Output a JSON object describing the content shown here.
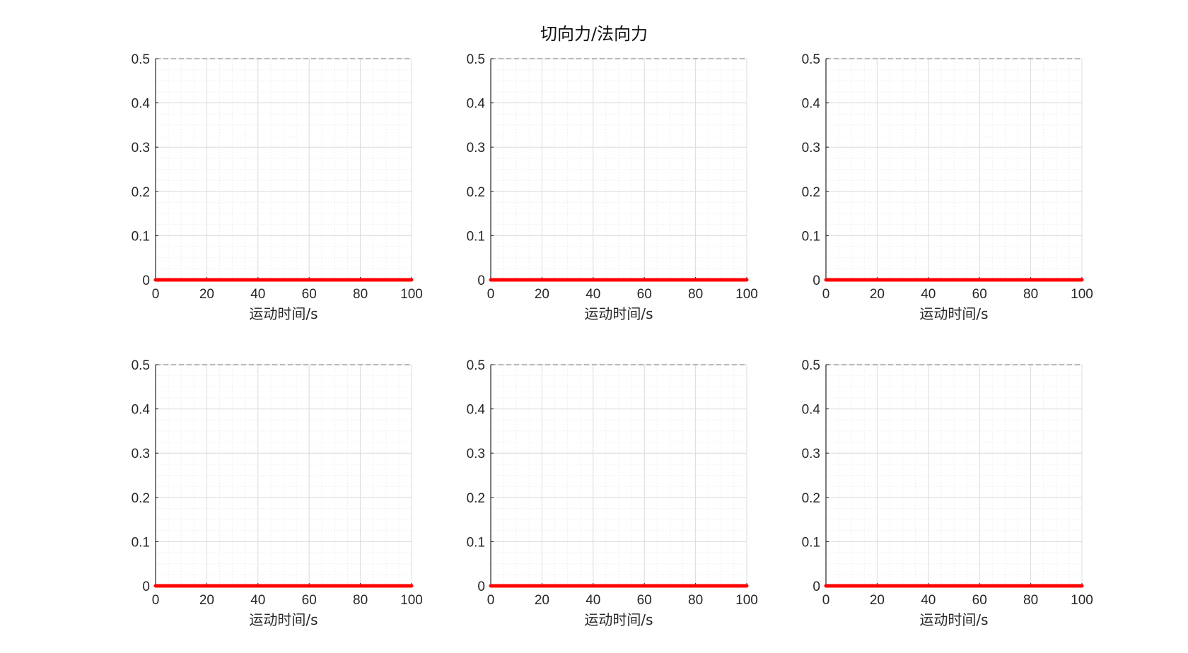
{
  "figure": {
    "title": "切向力/法向力"
  },
  "colors": {
    "series": "#ff0000",
    "axis": "#262626",
    "major_grid": "#dcdcdc",
    "minor_grid": "#ececec",
    "top_box": "#8c8c8c"
  },
  "chart_data": [
    {
      "type": "line",
      "title": "",
      "xlabel": "运动时间/s",
      "ylabel": "",
      "xlim": [
        0,
        100
      ],
      "ylim": [
        0,
        0.5
      ],
      "xticks": [
        "0",
        "20",
        "40",
        "60",
        "80",
        "100"
      ],
      "yticks": [
        "0",
        "0.1",
        "0.2",
        "0.3",
        "0.4",
        "0.5"
      ],
      "grid": "major and minor",
      "series": [
        {
          "x": [
            0,
            100
          ],
          "y": [
            0,
            0
          ]
        }
      ]
    },
    {
      "type": "line",
      "title": "",
      "xlabel": "运动时间/s",
      "ylabel": "",
      "xlim": [
        0,
        100
      ],
      "ylim": [
        0,
        0.5
      ],
      "xticks": [
        "0",
        "20",
        "40",
        "60",
        "80",
        "100"
      ],
      "yticks": [
        "0",
        "0.1",
        "0.2",
        "0.3",
        "0.4",
        "0.5"
      ],
      "grid": "major and minor",
      "series": [
        {
          "x": [
            0,
            100
          ],
          "y": [
            0,
            0
          ]
        }
      ]
    },
    {
      "type": "line",
      "title": "",
      "xlabel": "运动时间/s",
      "ylabel": "",
      "xlim": [
        0,
        100
      ],
      "ylim": [
        0,
        0.5
      ],
      "xticks": [
        "0",
        "20",
        "40",
        "60",
        "80",
        "100"
      ],
      "yticks": [
        "0",
        "0.1",
        "0.2",
        "0.3",
        "0.4",
        "0.5"
      ],
      "grid": "major and minor",
      "series": [
        {
          "x": [
            0,
            100
          ],
          "y": [
            0,
            0
          ]
        }
      ]
    },
    {
      "type": "line",
      "title": "",
      "xlabel": "运动时间/s",
      "ylabel": "",
      "xlim": [
        0,
        100
      ],
      "ylim": [
        0,
        0.5
      ],
      "xticks": [
        "0",
        "20",
        "40",
        "60",
        "80",
        "100"
      ],
      "yticks": [
        "0",
        "0.1",
        "0.2",
        "0.3",
        "0.4",
        "0.5"
      ],
      "grid": "major and minor",
      "series": [
        {
          "x": [
            0,
            100
          ],
          "y": [
            0,
            0
          ]
        }
      ]
    },
    {
      "type": "line",
      "title": "",
      "xlabel": "运动时间/s",
      "ylabel": "",
      "xlim": [
        0,
        100
      ],
      "ylim": [
        0,
        0.5
      ],
      "xticks": [
        "0",
        "20",
        "40",
        "60",
        "80",
        "100"
      ],
      "yticks": [
        "0",
        "0.1",
        "0.2",
        "0.3",
        "0.4",
        "0.5"
      ],
      "grid": "major and minor",
      "series": [
        {
          "x": [
            0,
            100
          ],
          "y": [
            0,
            0
          ]
        }
      ]
    },
    {
      "type": "line",
      "title": "",
      "xlabel": "运动时间/s",
      "ylabel": "",
      "xlim": [
        0,
        100
      ],
      "ylim": [
        0,
        0.5
      ],
      "xticks": [
        "0",
        "20",
        "40",
        "60",
        "80",
        "100"
      ],
      "yticks": [
        "0",
        "0.1",
        "0.2",
        "0.3",
        "0.4",
        "0.5"
      ],
      "grid": "major and minor",
      "series": [
        {
          "x": [
            0,
            100
          ],
          "y": [
            0,
            0
          ]
        }
      ]
    }
  ]
}
